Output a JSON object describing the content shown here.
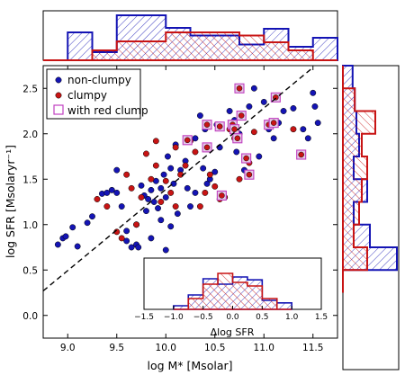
{
  "colors": {
    "non_clumpy": "#1414b4",
    "clumpy": "#c81414",
    "red_clump_marker": "#c040c0",
    "fit_line": "#000000"
  },
  "chart_data": [
    {
      "id": "main",
      "type": "scatter",
      "xlabel": "log M* [Msolar]",
      "ylabel": "log SFR [Msolaryr⁻¹]",
      "xlim": [
        8.75,
        11.75
      ],
      "ylim": [
        -0.25,
        2.75
      ],
      "xticks": [
        9.0,
        9.5,
        10.0,
        10.5,
        11.0,
        11.5
      ],
      "xtick_labels": [
        "9.0",
        "9.5",
        "10.0",
        "10.5",
        "11.0",
        "11.5"
      ],
      "yticks": [
        0.0,
        0.5,
        1.0,
        1.5,
        2.0,
        2.5
      ],
      "ytick_labels": [
        "0.0",
        "0.5",
        "1.0",
        "1.5",
        "2.0",
        "2.5"
      ],
      "legend": {
        "position": "top-left",
        "entries": [
          {
            "label": "non-clumpy",
            "marker": "dot-blue"
          },
          {
            "label": "clumpy",
            "marker": "dot-red"
          },
          {
            "label": "with red clump",
            "marker": "square-magenta"
          }
        ]
      },
      "reference_line": {
        "x": [
          8.75,
          11.5
        ],
        "y": [
          0.27,
          2.73
        ],
        "style": "dashed"
      },
      "series": [
        {
          "name": "non-clumpy",
          "points": [
            [
              8.9,
              0.78
            ],
            [
              8.95,
              0.85
            ],
            [
              8.98,
              0.87
            ],
            [
              9.05,
              0.97
            ],
            [
              9.1,
              0.76
            ],
            [
              9.2,
              1.02
            ],
            [
              9.25,
              1.09
            ],
            [
              9.35,
              1.34
            ],
            [
              9.45,
              1.38
            ],
            [
              9.5,
              1.35
            ],
            [
              9.55,
              1.2
            ],
            [
              9.6,
              0.82
            ],
            [
              9.65,
              0.75
            ],
            [
              9.7,
              0.78
            ],
            [
              9.72,
              0.75
            ],
            [
              9.75,
              1.43
            ],
            [
              9.78,
              1.32
            ],
            [
              9.8,
              1.15
            ],
            [
              9.82,
              1.28
            ],
            [
              9.85,
              1.38
            ],
            [
              9.88,
              1.25
            ],
            [
              9.9,
              1.48
            ],
            [
              9.92,
              1.18
            ],
            [
              9.95,
              1.4
            ],
            [
              9.98,
              1.55
            ],
            [
              10.0,
              1.3
            ],
            [
              10.02,
              1.75
            ],
            [
              10.05,
              1.62
            ],
            [
              10.08,
              1.45
            ],
            [
              10.1,
              1.88
            ],
            [
              10.15,
              1.6
            ],
            [
              10.2,
              1.7
            ],
            [
              10.22,
              1.4
            ],
            [
              10.25,
              1.2
            ],
            [
              10.3,
              1.95
            ],
            [
              10.35,
              2.2
            ],
            [
              10.38,
              1.62
            ],
            [
              10.4,
              2.05
            ],
            [
              10.42,
              1.45
            ],
            [
              10.45,
              1.5
            ],
            [
              10.5,
              1.58
            ],
            [
              10.52,
              2.1
            ],
            [
              10.55,
              1.85
            ],
            [
              10.6,
              1.3
            ],
            [
              10.65,
              2.25
            ],
            [
              10.7,
              2.15
            ],
            [
              10.72,
              1.8
            ],
            [
              10.75,
              2.0
            ],
            [
              10.8,
              1.6
            ],
            [
              10.85,
              2.3
            ],
            [
              10.9,
              2.5
            ],
            [
              10.95,
              1.75
            ],
            [
              11.0,
              2.35
            ],
            [
              11.05,
              2.05
            ],
            [
              11.1,
              1.95
            ],
            [
              11.15,
              2.12
            ],
            [
              11.2,
              2.25
            ],
            [
              11.3,
              2.28
            ],
            [
              11.4,
              2.05
            ],
            [
              11.45,
              1.95
            ],
            [
              11.5,
              2.45
            ],
            [
              11.52,
              2.3
            ],
            [
              11.55,
              2.12
            ],
            [
              9.95,
              1.05
            ],
            [
              10.05,
              0.98
            ],
            [
              9.85,
              0.85
            ],
            [
              10.0,
              0.72
            ],
            [
              9.6,
              0.93
            ],
            [
              9.7,
              1.0
            ],
            [
              10.3,
              1.35
            ],
            [
              10.12,
              1.12
            ],
            [
              9.4,
              1.35
            ],
            [
              9.5,
              1.6
            ]
          ]
        },
        {
          "name": "clumpy",
          "points": [
            [
              9.3,
              1.28
            ],
            [
              9.4,
              1.2
            ],
            [
              9.5,
              0.92
            ],
            [
              9.6,
              1.55
            ],
            [
              9.65,
              1.4
            ],
            [
              9.7,
              1.0
            ],
            [
              9.75,
              1.3
            ],
            [
              9.8,
              1.78
            ],
            [
              9.85,
              1.5
            ],
            [
              9.9,
              1.65
            ],
            [
              9.95,
              1.25
            ],
            [
              10.0,
              1.48
            ],
            [
              10.05,
              1.35
            ],
            [
              10.1,
              1.85
            ],
            [
              10.15,
              1.55
            ],
            [
              10.2,
              1.65
            ],
            [
              10.25,
              1.92
            ],
            [
              10.3,
              1.8
            ],
            [
              10.35,
              1.2
            ],
            [
              10.4,
              1.35
            ],
            [
              10.45,
              1.55
            ],
            [
              10.5,
              1.42
            ],
            [
              10.55,
              1.28
            ],
            [
              10.6,
              1.3
            ],
            [
              10.65,
              2.05
            ],
            [
              10.7,
              1.95
            ],
            [
              10.75,
              1.5
            ],
            [
              10.85,
              1.68
            ],
            [
              10.9,
              2.02
            ],
            [
              11.3,
              2.05
            ],
            [
              10.1,
              1.2
            ],
            [
              9.55,
              0.85
            ],
            [
              9.9,
              1.92
            ]
          ]
        },
        {
          "name": "with red clump",
          "points": [
            [
              10.22,
              1.93
            ],
            [
              10.42,
              2.1
            ],
            [
              10.42,
              1.85
            ],
            [
              10.55,
              2.08
            ],
            [
              10.57,
              1.32
            ],
            [
              10.68,
              2.1
            ],
            [
              10.7,
              2.05
            ],
            [
              10.73,
              1.95
            ],
            [
              10.75,
              2.5
            ],
            [
              10.77,
              2.2
            ],
            [
              10.82,
              1.73
            ],
            [
              10.85,
              1.55
            ],
            [
              11.05,
              2.1
            ],
            [
              11.1,
              2.12
            ],
            [
              11.12,
              2.4
            ],
            [
              11.38,
              1.77
            ]
          ]
        }
      ]
    },
    {
      "id": "top-histogram",
      "type": "histogram",
      "axis": "log M* [Msolar]",
      "bin_edges": [
        8.75,
        9.0,
        9.25,
        9.5,
        9.75,
        10.0,
        10.25,
        10.5,
        10.75,
        11.0,
        11.25,
        11.5,
        11.75
      ],
      "series": [
        {
          "name": "non-clumpy",
          "counts": [
            0,
            0.62,
            0.18,
            1.0,
            1.0,
            0.72,
            0.55,
            0.55,
            0.35,
            0.7,
            0.3,
            0.5
          ]
        },
        {
          "name": "clumpy",
          "counts": [
            0,
            0,
            0.22,
            0.42,
            0.42,
            0.62,
            0.62,
            0.62,
            0.55,
            0.4,
            0.22,
            0
          ]
        }
      ]
    },
    {
      "id": "right-histogram",
      "type": "histogram",
      "axis": "log SFR [Msolaryr⁻¹]",
      "bin_edges": [
        0.25,
        0.5,
        0.75,
        1.0,
        1.25,
        1.5,
        1.75,
        2.0,
        2.25,
        2.5,
        2.75
      ],
      "series": [
        {
          "name": "non-clumpy",
          "counts": [
            0,
            1.0,
            0.5,
            0.2,
            0.45,
            0.2,
            0.3,
            0.25,
            0.22,
            0.18
          ]
        },
        {
          "name": "clumpy",
          "counts": [
            0,
            0.45,
            0.2,
            0.3,
            0.35,
            0.45,
            0.35,
            0.6,
            0.22,
            0
          ]
        }
      ]
    },
    {
      "id": "inset",
      "type": "histogram",
      "xlabel": "Δlog SFR",
      "xlim": [
        -1.5,
        1.5
      ],
      "xticks": [
        -1.5,
        -1.0,
        -0.5,
        0.0,
        0.5,
        1.0,
        1.5
      ],
      "xtick_labels": [
        "−1.5",
        "−1.0",
        "−0.5",
        "0.0",
        "0.5",
        "1.0",
        "1.5"
      ],
      "bin_edges": [
        -1.0,
        -0.75,
        -0.5,
        -0.25,
        0.0,
        0.25,
        0.5,
        0.75,
        1.0
      ],
      "series": [
        {
          "name": "non-clumpy",
          "counts": [
            0.1,
            0.4,
            0.85,
            0.7,
            0.9,
            0.82,
            0.25,
            0.18
          ]
        },
        {
          "name": "clumpy",
          "counts": [
            0,
            0.3,
            0.7,
            1.0,
            0.75,
            0.65,
            0.3,
            0
          ]
        }
      ]
    }
  ]
}
